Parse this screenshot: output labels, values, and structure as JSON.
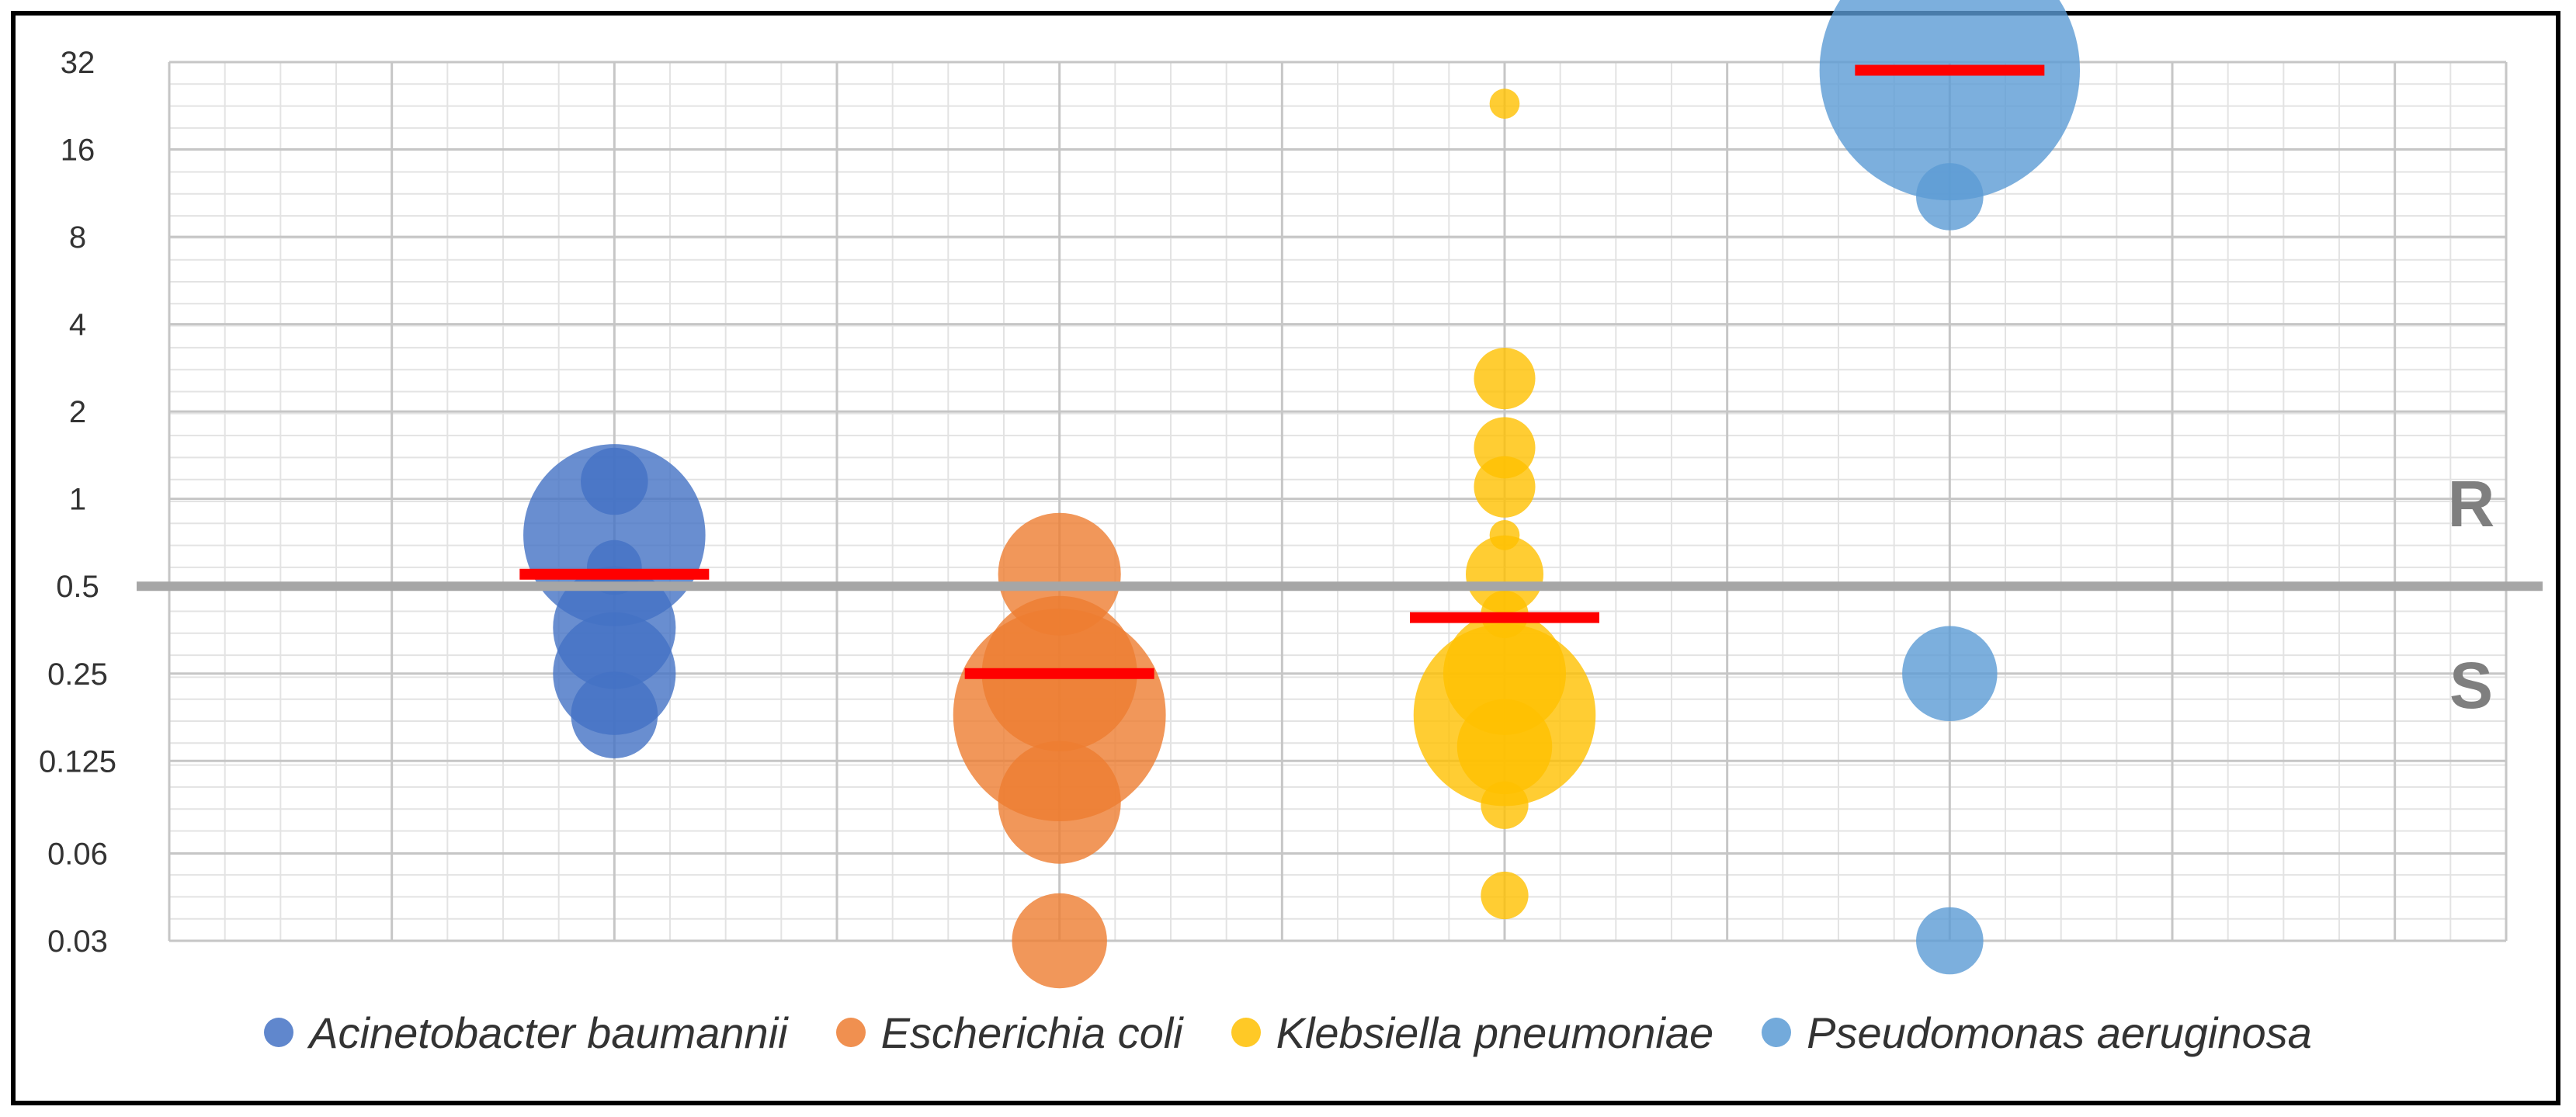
{
  "chart_data": {
    "type": "scatter",
    "variant": "bubble",
    "title": "",
    "xlabel": "",
    "ylabel": "",
    "y_scale": "log2",
    "ylim": [
      0.03,
      32
    ],
    "y_ticks": [
      "32",
      "16",
      "8",
      "4",
      "2",
      "1",
      "0.5",
      "0.25",
      "0.125",
      "0.06",
      "0.03"
    ],
    "y_tick_values": [
      32,
      16,
      8,
      4,
      2,
      1,
      0.5,
      0.25,
      0.125,
      0.06,
      0.03
    ],
    "breakpoint": 0.5,
    "zone_labels": {
      "above": "R",
      "below": "S"
    },
    "legend_position": "bottom",
    "series": [
      {
        "name": "Acinetobacter baumannii",
        "x": 2,
        "color": "#4472c4",
        "median": 0.55,
        "points": [
          {
            "y": 1.15,
            "size": 3
          },
          {
            "y": 0.75,
            "size": 22
          },
          {
            "y": 0.58,
            "size": 2
          },
          {
            "y": 0.36,
            "size": 10
          },
          {
            "y": 0.25,
            "size": 10
          },
          {
            "y": 0.18,
            "size": 5
          }
        ]
      },
      {
        "name": "Escherichia coli",
        "x": 4,
        "color": "#ed7d31",
        "median": 0.25,
        "points": [
          {
            "y": 0.55,
            "size": 10
          },
          {
            "y": 0.25,
            "size": 16
          },
          {
            "y": 0.18,
            "size": 30
          },
          {
            "y": 0.09,
            "size": 10
          },
          {
            "y": 0.03,
            "size": 6
          }
        ]
      },
      {
        "name": "Klebsiella pneumoniae",
        "x": 6,
        "color": "#ffc000",
        "median": 0.39,
        "points": [
          {
            "y": 23,
            "size": 0.6
          },
          {
            "y": 2.6,
            "size": 2.5
          },
          {
            "y": 1.5,
            "size": 2.5
          },
          {
            "y": 1.1,
            "size": 2.5
          },
          {
            "y": 0.75,
            "size": 0.6
          },
          {
            "y": 0.55,
            "size": 4
          },
          {
            "y": 0.4,
            "size": 1.5
          },
          {
            "y": 0.25,
            "size": 10
          },
          {
            "y": 0.18,
            "size": 22
          },
          {
            "y": 0.14,
            "size": 6
          },
          {
            "y": 0.088,
            "size": 1.5
          },
          {
            "y": 0.043,
            "size": 1.5
          }
        ]
      },
      {
        "name": "Pseudomonas aeruginosa",
        "x": 8,
        "color": "#5b9bd5",
        "median": 30,
        "points": [
          {
            "y": 30,
            "size": 45
          },
          {
            "y": 11,
            "size": 3
          },
          {
            "y": 0.25,
            "size": 6
          },
          {
            "y": 0.03,
            "size": 3
          }
        ]
      }
    ]
  }
}
